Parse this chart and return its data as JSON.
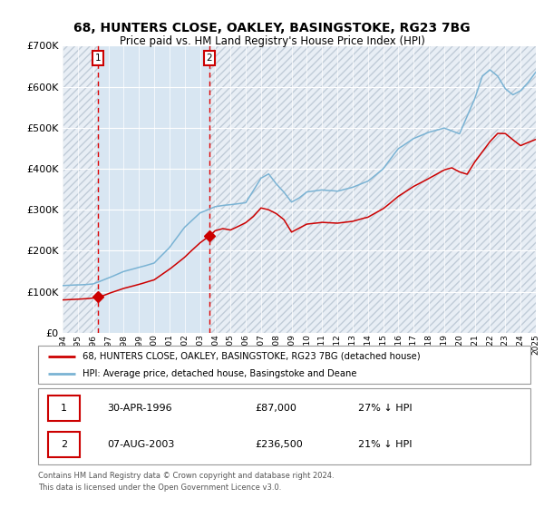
{
  "title": "68, HUNTERS CLOSE, OAKLEY, BASINGSTOKE, RG23 7BG",
  "subtitle": "Price paid vs. HM Land Registry's House Price Index (HPI)",
  "legend_line1": "68, HUNTERS CLOSE, OAKLEY, BASINGSTOKE, RG23 7BG (detached house)",
  "legend_line2": "HPI: Average price, detached house, Basingstoke and Deane",
  "footnote1": "Contains HM Land Registry data © Crown copyright and database right 2024.",
  "footnote2": "This data is licensed under the Open Government Licence v3.0.",
  "sale1_date": "30-APR-1996",
  "sale1_price": 87000,
  "sale1_hpi_pct": "27% ↓ HPI",
  "sale2_date": "07-AUG-2003",
  "sale2_price": 236500,
  "sale2_hpi_pct": "21% ↓ HPI",
  "hpi_color": "#7ab3d4",
  "property_color": "#cc0000",
  "sale_marker_color": "#cc0000",
  "dashed_line_color": "#dd0000",
  "background_color": "#ffffff",
  "chart_bg_color": "#e8eef5",
  "shaded_region_color": "#d8e6f2",
  "grid_color": "#ffffff",
  "ylim": [
    0,
    700000
  ],
  "yticks": [
    0,
    100000,
    200000,
    300000,
    400000,
    500000,
    600000,
    700000
  ],
  "ytick_labels": [
    "£0",
    "£100K",
    "£200K",
    "£300K",
    "£400K",
    "£500K",
    "£600K",
    "£700K"
  ],
  "year_start": 1994,
  "year_end": 2025,
  "sale1_year": 1996.33,
  "sale2_year": 2003.6,
  "hpi_key_years": [
    1994.0,
    1995.0,
    1996.0,
    1997.0,
    1998.0,
    1999.0,
    2000.0,
    2001.0,
    2002.0,
    2003.0,
    2004.0,
    2005.0,
    2006.0,
    2007.0,
    2007.5,
    2008.0,
    2008.5,
    2009.0,
    2009.5,
    2010.0,
    2011.0,
    2012.0,
    2013.0,
    2014.0,
    2015.0,
    2016.0,
    2017.0,
    2018.0,
    2019.0,
    2020.0,
    2021.0,
    2021.5,
    2022.0,
    2022.5,
    2023.0,
    2023.5,
    2024.0,
    2024.5,
    2025.0
  ],
  "hpi_key_values": [
    115000,
    116000,
    120000,
    135000,
    152000,
    162000,
    172000,
    210000,
    260000,
    295000,
    310000,
    315000,
    320000,
    380000,
    390000,
    365000,
    345000,
    320000,
    330000,
    345000,
    350000,
    345000,
    355000,
    370000,
    400000,
    450000,
    475000,
    490000,
    500000,
    485000,
    570000,
    625000,
    640000,
    625000,
    595000,
    580000,
    590000,
    610000,
    635000
  ],
  "prop_key_years": [
    1994.0,
    1995.5,
    1996.33,
    1997.0,
    1998.0,
    1999.0,
    2000.0,
    2001.0,
    2002.0,
    2003.0,
    2003.6,
    2004.0,
    2004.5,
    2005.0,
    2005.5,
    2006.0,
    2006.5,
    2007.0,
    2007.5,
    2008.0,
    2008.5,
    2009.0,
    2009.5,
    2010.0,
    2011.0,
    2012.0,
    2013.0,
    2014.0,
    2015.0,
    2016.0,
    2017.0,
    2018.0,
    2019.0,
    2019.5,
    2020.0,
    2020.5,
    2021.0,
    2022.0,
    2022.5,
    2023.0,
    2023.5,
    2024.0,
    2024.5,
    2025.0
  ],
  "prop_key_values": [
    80000,
    83000,
    87000,
    97000,
    110000,
    120000,
    130000,
    155000,
    185000,
    220000,
    236500,
    250000,
    255000,
    252000,
    260000,
    270000,
    285000,
    305000,
    300000,
    290000,
    275000,
    245000,
    255000,
    265000,
    270000,
    268000,
    273000,
    283000,
    305000,
    335000,
    360000,
    380000,
    400000,
    405000,
    395000,
    390000,
    420000,
    470000,
    490000,
    490000,
    475000,
    460000,
    468000,
    475000
  ]
}
